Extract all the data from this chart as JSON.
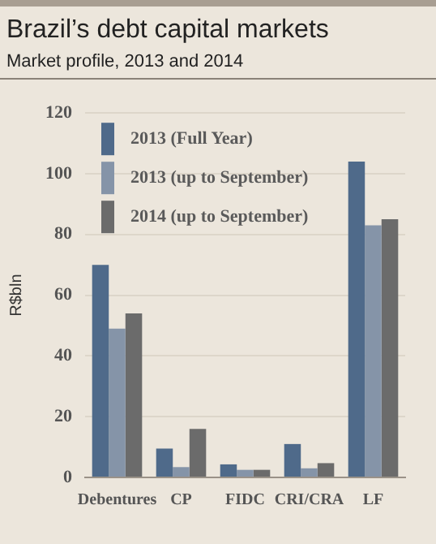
{
  "chart_data": {
    "type": "bar",
    "title": "Brazil’s debt capital markets",
    "subtitle": "Market profile, 2013 and 2014",
    "ylabel": "R$bln",
    "categories": [
      "Debentures",
      "CP",
      "FIDC",
      "CRI/CRA",
      "LF"
    ],
    "series": [
      {
        "name": "2013 (Full Year)",
        "color": "#4f6a8a",
        "values": [
          70,
          9.5,
          4.3,
          11,
          104
        ]
      },
      {
        "name": "2013 (up to September)",
        "color": "#8594a8",
        "values": [
          49,
          3.4,
          2.5,
          3,
          83
        ]
      },
      {
        "name": "2014 (up to September)",
        "color": "#6b6b6b",
        "values": [
          54,
          16,
          2.5,
          4.7,
          85
        ]
      }
    ],
    "ylim": [
      0,
      120
    ],
    "yticks": [
      0,
      20,
      40,
      60,
      80,
      100,
      120
    ],
    "grid": "y",
    "legend": "top left"
  }
}
